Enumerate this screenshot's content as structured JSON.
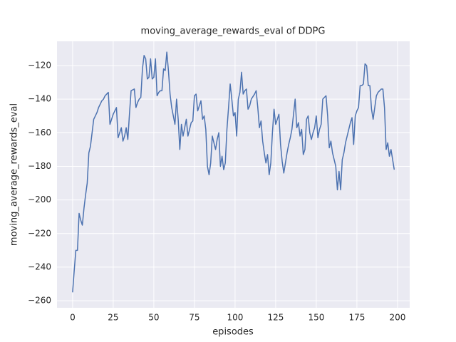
{
  "chart_data": {
    "type": "line",
    "title": "moving_average_rewards_eval of DDPG",
    "xlabel": "episodes",
    "ylabel": "moving_average_rewards_eval",
    "background": "#eaeaf2",
    "grid": true,
    "xlim": [
      -9.6,
      207.5
    ],
    "ylim": [
      -264.2,
      -105.6
    ],
    "xticks": [
      0,
      25,
      50,
      75,
      100,
      125,
      150,
      175,
      200
    ],
    "yticks": [
      {
        "value": -260,
        "label": "−260"
      },
      {
        "value": -240,
        "label": "−240"
      },
      {
        "value": -220,
        "label": "−220"
      },
      {
        "value": -200,
        "label": "−200"
      },
      {
        "value": -180,
        "label": "−180"
      },
      {
        "value": -160,
        "label": "−160"
      },
      {
        "value": -140,
        "label": "−140"
      },
      {
        "value": -120,
        "label": "−120"
      }
    ],
    "x": [
      0,
      1,
      2,
      3,
      4,
      5,
      6,
      7,
      8,
      9,
      10,
      11,
      13,
      14,
      15,
      16,
      17,
      18,
      19,
      20,
      21,
      22,
      23,
      24,
      25,
      26,
      27,
      28,
      29,
      30,
      31,
      32,
      33,
      34,
      35,
      36,
      38,
      39,
      40,
      41,
      42,
      43,
      44,
      45,
      46,
      47,
      48,
      49,
      50,
      51,
      52,
      53,
      54,
      55,
      56,
      57,
      58,
      59,
      60,
      61,
      63,
      64,
      65,
      66,
      67,
      68,
      69,
      70,
      71,
      72,
      73,
      74,
      75,
      76,
      77,
      78,
      79,
      80,
      81,
      82,
      83,
      84,
      85,
      86,
      88,
      89,
      90,
      91,
      92,
      93,
      94,
      95,
      96,
      97,
      98,
      99,
      100,
      101,
      102,
      103,
      104,
      105,
      106,
      107,
      108,
      109,
      110,
      112,
      113,
      114,
      115,
      116,
      117,
      118,
      119,
      120,
      121,
      122,
      123,
      124,
      125,
      126,
      127,
      128,
      129,
      130,
      131,
      132,
      133,
      134,
      135,
      137,
      138,
      139,
      140,
      141,
      142,
      143,
      144,
      145,
      146,
      147,
      148,
      149,
      150,
      151,
      152,
      153,
      154,
      155,
      156,
      157,
      158,
      159,
      160,
      162,
      163,
      164,
      165,
      166,
      167,
      168,
      169,
      170,
      171,
      172,
      173,
      174,
      175,
      176,
      177,
      178,
      179,
      180,
      181,
      182,
      183,
      184,
      185,
      187,
      188,
      189,
      190,
      191,
      192,
      193,
      194,
      195,
      196,
      197,
      198
    ],
    "series": [
      {
        "name": "moving_average_rewards_eval",
        "color": "#4c72b0",
        "values": [
          -255,
          -242,
          -230,
          -230,
          -208,
          -212,
          -215,
          -205,
          -197,
          -190,
          -172,
          -168,
          -152,
          -150,
          -148,
          -145,
          -143,
          -141,
          -140,
          -138,
          -137,
          -136,
          -155,
          -152,
          -149,
          -147,
          -145,
          -163,
          -160,
          -157,
          -165,
          -162,
          -157,
          -164,
          -149,
          -135,
          -134,
          -145,
          -142,
          -140,
          -139,
          -122,
          -114,
          -116,
          -128,
          -127,
          -116,
          -128,
          -127,
          -116,
          -138,
          -136,
          -135,
          -135,
          -122,
          -123,
          -112,
          -123,
          -137,
          -145,
          -155,
          -140,
          -152,
          -170,
          -155,
          -162,
          -157,
          -152,
          -162,
          -158,
          -154,
          -153,
          -138,
          -137,
          -147,
          -144,
          -141,
          -152,
          -150,
          -158,
          -180,
          -185,
          -178,
          -162,
          -170,
          -164,
          -160,
          -180,
          -174,
          -182,
          -178,
          -158,
          -145,
          -131,
          -140,
          -150,
          -148,
          -162,
          -140,
          -136,
          -124,
          -137,
          -135,
          -134,
          -146,
          -144,
          -140,
          -137,
          -135,
          -145,
          -157,
          -153,
          -165,
          -172,
          -178,
          -173,
          -185,
          -178,
          -160,
          -146,
          -155,
          -152,
          -149,
          -167,
          -177,
          -184,
          -178,
          -172,
          -167,
          -163,
          -158,
          -140,
          -157,
          -154,
          -162,
          -158,
          -173,
          -170,
          -152,
          -150,
          -160,
          -164,
          -160,
          -157,
          -150,
          -163,
          -158,
          -155,
          -140,
          -139,
          -138,
          -150,
          -169,
          -165,
          -172,
          -180,
          -194,
          -183,
          -194,
          -176,
          -172,
          -166,
          -162,
          -158,
          -154,
          -151,
          -167,
          -150,
          -147,
          -145,
          -132,
          -132,
          -131,
          -119,
          -120,
          -132,
          -132,
          -146,
          -152,
          -138,
          -136,
          -135,
          -134,
          -134,
          -145,
          -170,
          -166,
          -174,
          -170,
          -176,
          -182
        ]
      }
    ]
  }
}
